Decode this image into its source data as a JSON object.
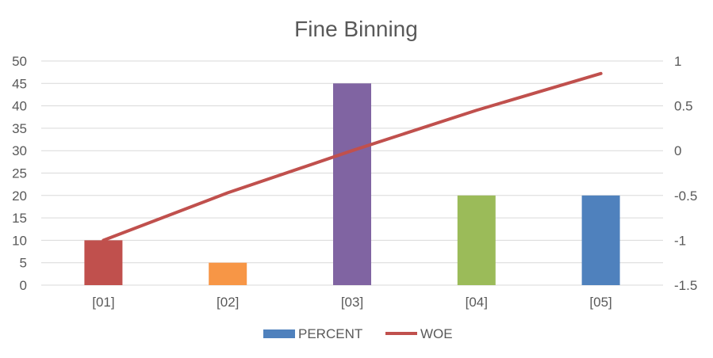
{
  "chart_data": {
    "type": "bar",
    "title": "Fine Binning",
    "categories": [
      "[01]",
      "[02]",
      "[03]",
      "[04]",
      "[05]"
    ],
    "series": [
      {
        "name": "PERCENT",
        "type": "bar",
        "axis": "left",
        "values": [
          10,
          5,
          45,
          20,
          20
        ],
        "colors": [
          "#c0504d",
          "#f79646",
          "#8064a2",
          "#9bbb59",
          "#4f81bd"
        ],
        "legend_color": "#4f81bd"
      },
      {
        "name": "WOE",
        "type": "line",
        "axis": "right",
        "values": [
          -1.0,
          -0.47,
          0.0,
          0.45,
          0.86
        ],
        "color": "#c0504d"
      }
    ],
    "y_left": {
      "lim": [
        0,
        50
      ],
      "ticks": [
        "0",
        "5",
        "10",
        "15",
        "20",
        "25",
        "30",
        "35",
        "40",
        "45",
        "50"
      ]
    },
    "y_right": {
      "lim": [
        -1.5,
        1
      ],
      "ticks": [
        "-1.5",
        "-1",
        "-0.5",
        "0",
        "0.5",
        "1"
      ]
    },
    "grid": true,
    "legend_position": "bottom"
  }
}
